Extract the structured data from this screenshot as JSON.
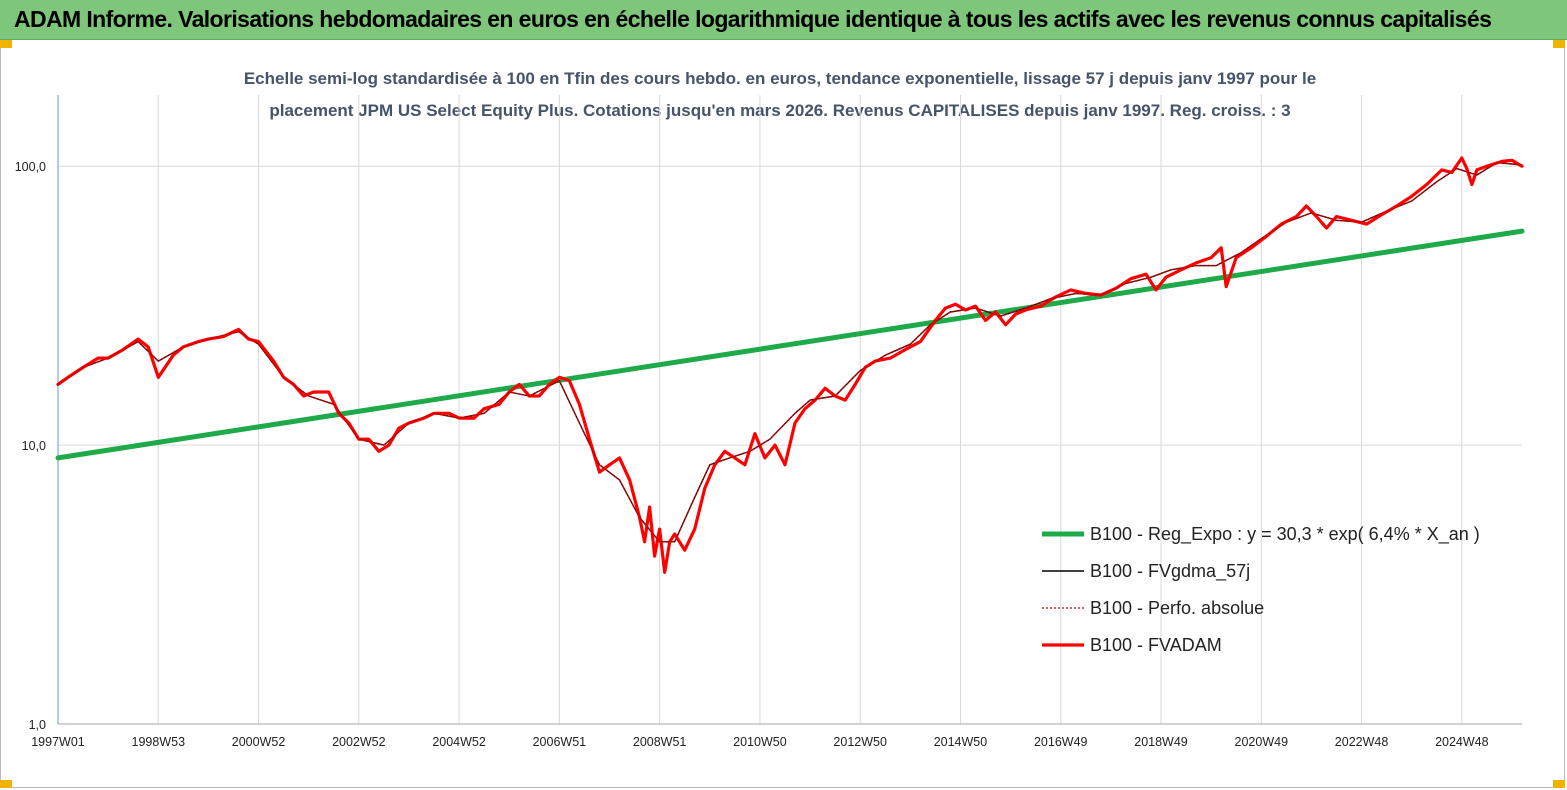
{
  "header": {
    "title": "ADAM Informe. Valorisations hebdomadaires en euros en échelle logarithmique identique à tous les actifs avec les revenus connus capitalisés"
  },
  "chart_data": {
    "type": "line",
    "title_line1": "Echelle semi-log standardisée à 100 en Tfin des cours hebdo. en euros, tendance exponentielle, lissage 57 j depuis janv 1997 pour le",
    "title_line2": "placement JPM US Select  Equity Plus. Cotations jusqu'en mars 2026. Revenus CAPITALISES depuis janv 1997. Reg. croiss. : 3",
    "y_scale": "log",
    "ylim": [
      1,
      180
    ],
    "y_ticks": [
      "1,0",
      "10,0",
      "100,0"
    ],
    "y_tick_values": [
      1,
      10,
      100
    ],
    "xlim": [
      1997.0,
      2026.2
    ],
    "x_ticks": [
      "1997W01",
      "1998W53",
      "2000W52",
      "2002W52",
      "2004W52",
      "2006W51",
      "2008W51",
      "2010W50",
      "2012W50",
      "2014W50",
      "2016W49",
      "2018W49",
      "2020W49",
      "2022W48",
      "2024W48"
    ],
    "x_tick_values": [
      1997.0,
      1999.0,
      2001.0,
      2003.0,
      2005.0,
      2007.0,
      2009.0,
      2011.0,
      2013.0,
      2015.0,
      2017.0,
      2019.0,
      2021.0,
      2023.0,
      2025.0
    ],
    "grid": true,
    "legend_position": "bottom-right",
    "series": [
      {
        "name": "B100 - Reg_Expo : y = 30,3 *  exp( 6,4% *  X_an )",
        "color": "#1faa4a",
        "style": "thick",
        "x": [
          1997.0,
          2026.2
        ],
        "values": [
          9.0,
          58.5
        ]
      },
      {
        "name": "B100 - FVgdma_57j",
        "color": "#000000",
        "style": "thin",
        "x": [
          1997.0,
          1997.5,
          1998.0,
          1998.6,
          1999.0,
          1999.5,
          2000.0,
          2000.6,
          2001.0,
          2001.5,
          2002.0,
          2002.5,
          2003.0,
          2003.5,
          2004.0,
          2004.5,
          2005.0,
          2005.5,
          2006.0,
          2006.4,
          2007.0,
          2007.4,
          2007.8,
          2008.2,
          2008.6,
          2009.0,
          2009.3,
          2009.7,
          2010.0,
          2010.4,
          2010.8,
          2011.2,
          2011.7,
          2012.0,
          2012.5,
          2013.0,
          2013.5,
          2014.0,
          2014.4,
          2014.8,
          2015.3,
          2015.8,
          2016.3,
          2016.8,
          2017.3,
          2017.8,
          2018.3,
          2018.8,
          2019.2,
          2019.7,
          2020.1,
          2020.6,
          2021.0,
          2021.5,
          2022.0,
          2022.5,
          2023.0,
          2023.5,
          2024.0,
          2024.5,
          2024.9,
          2025.3,
          2025.7,
          2026.2
        ],
        "values": [
          16.5,
          19.0,
          20.5,
          23.5,
          20.0,
          22.5,
          24.0,
          25.5,
          23.0,
          17.5,
          15.0,
          14.0,
          10.5,
          10.0,
          12.0,
          13.0,
          12.5,
          13.0,
          15.5,
          15.0,
          17.0,
          12.0,
          8.5,
          7.5,
          5.5,
          4.5,
          4.5,
          6.5,
          8.5,
          9.0,
          9.5,
          10.5,
          13.0,
          14.5,
          15.0,
          18.5,
          21.0,
          23.0,
          27.0,
          30.0,
          31.0,
          29.0,
          31.0,
          33.5,
          35.0,
          34.5,
          38.0,
          40.0,
          42.5,
          44.0,
          44.0,
          49.0,
          55.0,
          63.0,
          68.0,
          64.0,
          63.0,
          69.0,
          75.0,
          88.0,
          98.0,
          93.0,
          103.0,
          101.0
        ]
      },
      {
        "name": "B100 - Perfo. absolue",
        "color": "#c00000",
        "style": "dotted",
        "x": [
          1997.0,
          1997.5,
          1998.0,
          1998.6,
          1999.0,
          1999.5,
          2000.0,
          2000.6,
          2001.0,
          2001.5,
          2002.0,
          2002.5,
          2003.0,
          2003.5,
          2004.0,
          2004.5,
          2005.0,
          2005.5,
          2006.0,
          2006.4,
          2007.0,
          2007.4,
          2007.8,
          2008.2,
          2008.6,
          2009.0,
          2009.3,
          2009.7,
          2010.0,
          2010.4,
          2010.8,
          2011.2,
          2011.7,
          2012.0,
          2012.5,
          2013.0,
          2013.5,
          2014.0,
          2014.4,
          2014.8,
          2015.3,
          2015.8,
          2016.3,
          2016.8,
          2017.3,
          2017.8,
          2018.3,
          2018.8,
          2019.2,
          2019.7,
          2020.1,
          2020.6,
          2021.0,
          2021.5,
          2022.0,
          2022.5,
          2023.0,
          2023.5,
          2024.0,
          2024.5,
          2024.9,
          2025.3,
          2025.7,
          2026.2
        ],
        "values": [
          16.5,
          19.0,
          20.5,
          23.5,
          20.0,
          22.5,
          24.0,
          25.5,
          23.0,
          17.5,
          15.0,
          14.0,
          10.5,
          10.0,
          12.0,
          13.0,
          12.5,
          13.0,
          15.5,
          15.0,
          17.0,
          12.0,
          8.5,
          7.5,
          5.5,
          4.5,
          4.5,
          6.5,
          8.5,
          9.0,
          9.5,
          10.5,
          13.0,
          14.5,
          15.0,
          18.5,
          21.0,
          23.0,
          27.0,
          30.0,
          31.0,
          29.0,
          31.0,
          33.5,
          35.0,
          34.5,
          38.0,
          40.0,
          42.5,
          44.0,
          44.0,
          49.0,
          55.0,
          63.0,
          68.0,
          64.0,
          63.0,
          69.0,
          75.0,
          88.0,
          98.0,
          93.0,
          103.0,
          101.0
        ]
      },
      {
        "name": "B100 - FVADAM",
        "color": "#ff0000",
        "style": "thick",
        "x": [
          1997.0,
          1997.2,
          1997.5,
          1997.8,
          1998.0,
          1998.3,
          1998.6,
          1998.8,
          1999.0,
          1999.3,
          1999.5,
          1999.8,
          2000.0,
          2000.3,
          2000.6,
          2000.8,
          2001.0,
          2001.3,
          2001.5,
          2001.7,
          2001.9,
          2002.1,
          2002.4,
          2002.6,
          2002.8,
          2003.0,
          2003.2,
          2003.4,
          2003.6,
          2003.8,
          2004.0,
          2004.3,
          2004.5,
          2004.8,
          2005.0,
          2005.3,
          2005.5,
          2005.8,
          2006.0,
          2006.2,
          2006.4,
          2006.6,
          2006.8,
          2007.0,
          2007.2,
          2007.4,
          2007.6,
          2007.8,
          2008.0,
          2008.2,
          2008.4,
          2008.6,
          2008.7,
          2008.8,
          2008.9,
          2009.0,
          2009.1,
          2009.2,
          2009.3,
          2009.5,
          2009.7,
          2009.9,
          2010.1,
          2010.3,
          2010.5,
          2010.7,
          2010.9,
          2011.1,
          2011.3,
          2011.5,
          2011.7,
          2011.9,
          2012.1,
          2012.3,
          2012.5,
          2012.7,
          2012.9,
          2013.1,
          2013.3,
          2013.6,
          2013.9,
          2014.2,
          2014.5,
          2014.7,
          2014.9,
          2015.1,
          2015.3,
          2015.5,
          2015.7,
          2015.9,
          2016.1,
          2016.3,
          2016.6,
          2016.9,
          2017.2,
          2017.5,
          2017.8,
          2018.1,
          2018.4,
          2018.7,
          2018.9,
          2019.1,
          2019.4,
          2019.7,
          2020.0,
          2020.2,
          2020.3,
          2020.5,
          2020.8,
          2021.1,
          2021.4,
          2021.7,
          2021.9,
          2022.1,
          2022.3,
          2022.5,
          2022.8,
          2023.1,
          2023.4,
          2023.7,
          2024.0,
          2024.3,
          2024.6,
          2024.8,
          2025.0,
          2025.1,
          2025.2,
          2025.3,
          2025.5,
          2025.8,
          2026.0,
          2026.2
        ],
        "values": [
          16.5,
          17.5,
          19.0,
          20.5,
          20.5,
          22.0,
          24.0,
          22.5,
          17.5,
          21.0,
          22.5,
          23.5,
          24.0,
          24.5,
          26.0,
          24.0,
          23.5,
          20.0,
          17.5,
          16.5,
          15.0,
          15.5,
          15.5,
          13.0,
          12.0,
          10.5,
          10.5,
          9.5,
          10.0,
          11.5,
          12.0,
          12.5,
          13.0,
          13.0,
          12.5,
          12.5,
          13.5,
          14.0,
          15.5,
          16.5,
          15.0,
          15.0,
          16.5,
          17.5,
          17.0,
          14.0,
          10.5,
          8.0,
          8.5,
          9.0,
          7.5,
          5.5,
          4.5,
          6.0,
          4.0,
          5.0,
          3.5,
          4.5,
          4.8,
          4.2,
          5.0,
          7.0,
          8.5,
          9.5,
          9.0,
          8.5,
          11.0,
          9.0,
          10.0,
          8.5,
          12.0,
          13.5,
          14.5,
          16.0,
          15.0,
          14.5,
          16.5,
          19.0,
          20.0,
          20.5,
          22.0,
          23.5,
          28.0,
          31.0,
          32.0,
          30.5,
          31.5,
          28.0,
          30.0,
          27.0,
          29.5,
          30.5,
          31.5,
          34.0,
          36.0,
          35.0,
          34.5,
          36.5,
          39.5,
          41.0,
          36.0,
          40.0,
          42.5,
          45.0,
          47.0,
          51.0,
          37.0,
          47.0,
          51.0,
          56.0,
          62.0,
          66.0,
          72.0,
          66.0,
          60.0,
          66.0,
          64.0,
          62.0,
          67.0,
          72.0,
          78.0,
          86.0,
          97.0,
          95.0,
          107.0,
          98.0,
          86.0,
          97.0,
          100.0,
          104.0,
          105.0,
          100.0
        ]
      }
    ]
  }
}
